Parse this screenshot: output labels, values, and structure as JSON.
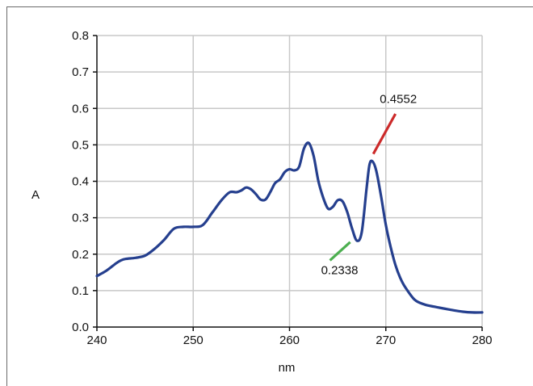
{
  "chart_data": {
    "type": "line",
    "xlabel": "nm",
    "ylabel": "A",
    "xlim": [
      240,
      280
    ],
    "ylim": [
      0,
      0.8
    ],
    "x_ticks": [
      240,
      250,
      260,
      270,
      280
    ],
    "x_tick_labels": [
      "240",
      "250",
      "260",
      "270",
      "280"
    ],
    "y_ticks": [
      0,
      0.1,
      0.2,
      0.3,
      0.4,
      0.5,
      0.6,
      0.7,
      0.8
    ],
    "y_tick_labels": [
      "0.0",
      "0.1",
      "0.2",
      "0.3",
      "0.4",
      "0.5",
      "0.6",
      "0.7",
      "0.8"
    ],
    "grid": true,
    "series": [
      {
        "color": "#253f8e",
        "x": [
          240,
          241,
          242,
          242.5,
          243,
          244,
          245,
          246,
          247,
          248,
          249,
          250,
          251,
          252,
          253,
          253.8,
          254.5,
          255,
          255.5,
          256,
          256.5,
          257,
          257.5,
          258,
          258.5,
          259,
          259.5,
          260,
          260.5,
          261,
          261.5,
          262,
          262.5,
          263,
          263.5,
          264,
          264.5,
          265,
          265.5,
          266,
          266.5,
          267,
          267.5,
          268,
          268.3,
          268.6,
          269,
          269.5,
          270,
          270.5,
          271,
          271.5,
          272,
          273,
          274,
          275,
          276,
          277,
          278,
          279,
          280
        ],
        "y": [
          0.14,
          0.155,
          0.175,
          0.183,
          0.187,
          0.19,
          0.196,
          0.215,
          0.24,
          0.27,
          0.275,
          0.275,
          0.28,
          0.315,
          0.35,
          0.37,
          0.37,
          0.375,
          0.383,
          0.378,
          0.365,
          0.35,
          0.35,
          0.37,
          0.395,
          0.405,
          0.425,
          0.433,
          0.43,
          0.44,
          0.49,
          0.505,
          0.47,
          0.4,
          0.355,
          0.325,
          0.33,
          0.348,
          0.345,
          0.315,
          0.27,
          0.237,
          0.26,
          0.38,
          0.445,
          0.455,
          0.43,
          0.36,
          0.28,
          0.22,
          0.17,
          0.135,
          0.11,
          0.075,
          0.062,
          0.056,
          0.051,
          0.046,
          0.042,
          0.04,
          0.04
        ]
      }
    ],
    "annotations": [
      {
        "text": "0.4552",
        "color": "#cc2a2a",
        "line_from": [
          268.7,
          0.475
        ],
        "line_to": [
          271,
          0.585
        ],
        "label_at": [
          271.3,
          0.615
        ]
      },
      {
        "text": "0.2338",
        "color": "#4caf50",
        "line_from": [
          266.3,
          0.233
        ],
        "line_to": [
          264.2,
          0.183
        ],
        "label_at": [
          265.2,
          0.145
        ]
      }
    ]
  }
}
